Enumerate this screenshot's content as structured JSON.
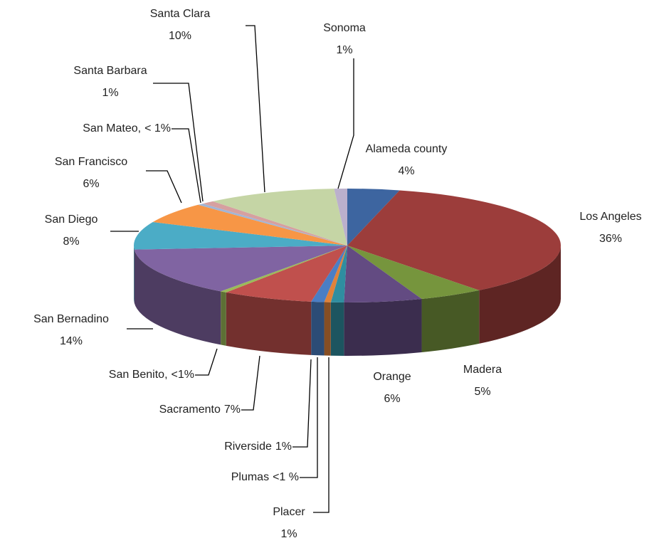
{
  "chart_data": {
    "type": "pie3d",
    "categories": [
      "Alameda county",
      "Los Angeles",
      "Madera",
      "Orange",
      "Placer",
      "Plumas",
      "Riverside",
      "Sacramento",
      "San Benito,",
      "San Bernadino",
      "San Diego",
      "San Francisco",
      "San Mateo,",
      "Santa Barbara",
      "Santa Clara",
      "Sonoma"
    ],
    "values": [
      4,
      36,
      5,
      6,
      1,
      0.5,
      1,
      7,
      0.5,
      14,
      8,
      6,
      0.5,
      1,
      10,
      1
    ],
    "value_labels": [
      "4%",
      "36%",
      "5%",
      "6%",
      "1%",
      "<1 %",
      "1%",
      "7%",
      "<1%",
      "14%",
      "8%",
      "6%",
      "< 1%",
      "1%",
      "10%",
      "1%"
    ],
    "colors": [
      "#3d65a0",
      "#9c3d3b",
      "#76953d",
      "#634b82",
      "#2f8ea0",
      "#e0823a",
      "#4a7ec5",
      "#c0504d",
      "#9bbb59",
      "#8064a2",
      "#4bacc6",
      "#f79646",
      "#a0b5d6",
      "#d6a0a0",
      "#c5d5a5",
      "#bbb0cc"
    ]
  }
}
